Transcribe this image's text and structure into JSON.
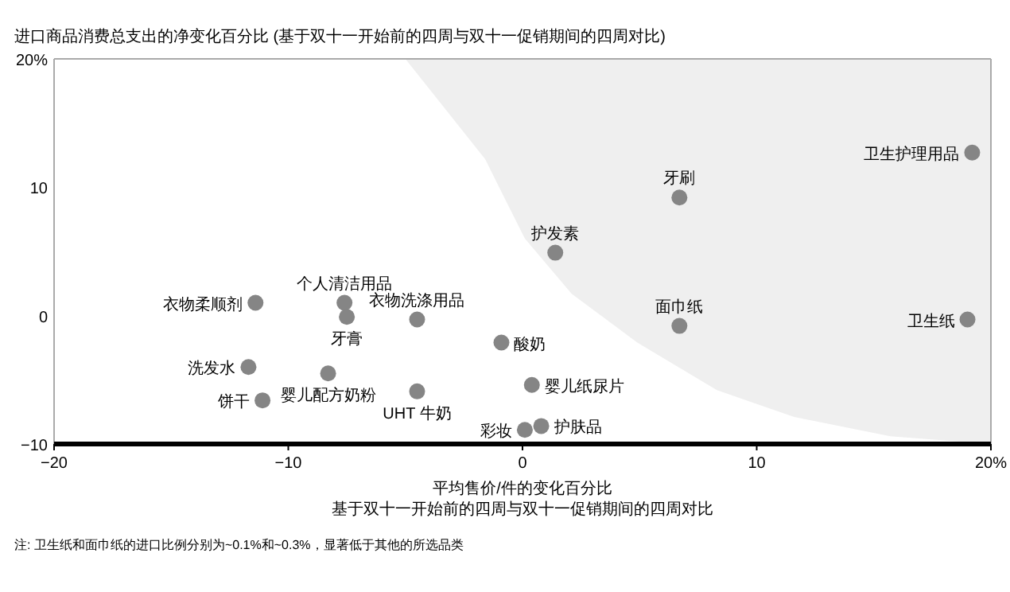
{
  "chart_data": {
    "type": "scatter",
    "ylabel": "进口商品消费总支出的净变化百分比 (基于双十一开始前的四周与双十一促销期间的四周对比)",
    "xlabel": "平均售价/件的变化百分比",
    "xlim": [
      -20,
      20
    ],
    "ylim": [
      -10,
      20
    ],
    "xticks": [
      {
        "value": -20,
        "label": "−20"
      },
      {
        "value": -10,
        "label": "−10"
      },
      0,
      10,
      {
        "value": 20,
        "label": "20%"
      }
    ],
    "yticks": [
      {
        "value": -10,
        "label": "−10"
      },
      0,
      10,
      {
        "value": 20,
        "label": "20%"
      }
    ],
    "marker": "circle",
    "series": [
      {
        "type": "area",
        "color": "#efefef",
        "x": [
          -5.0,
          -1.6,
          0.1,
          2.1,
          4.9,
          8.3,
          11.6,
          15.7,
          20,
          20
        ],
        "values": [
          20,
          12.2,
          6.0,
          1.7,
          -2.1,
          -5.8,
          -7.9,
          -9.4,
          -10,
          20
        ],
        "marker": "none"
      },
      {
        "name": "卫生护理用品",
        "color": "#858585",
        "x": [
          19.2
        ],
        "values": [
          12.7
        ]
      },
      {
        "name": "牙刷",
        "color": "#858585",
        "x": [
          6.7
        ],
        "values": [
          9.2
        ]
      },
      {
        "name": "护发素",
        "color": "#858585",
        "x": [
          1.4
        ],
        "values": [
          4.9
        ]
      },
      {
        "name": "面巾纸",
        "color": "#858585",
        "x": [
          6.7
        ],
        "values": [
          -0.8
        ]
      },
      {
        "name": "卫生纸",
        "color": "#858585",
        "x": [
          19.0
        ],
        "values": [
          -0.3
        ]
      },
      {
        "name": "酸奶",
        "color": "#858585",
        "x": [
          -0.9
        ],
        "values": [
          -2.1
        ]
      },
      {
        "name": "婴儿纸尿片",
        "color": "#858585",
        "x": [
          0.4
        ],
        "values": [
          -5.4
        ]
      },
      {
        "name": "护肤品",
        "color": "#858585",
        "x": [
          0.8
        ],
        "values": [
          -8.6
        ]
      },
      {
        "name": "彩妆",
        "color": "#858585",
        "x": [
          0.1
        ],
        "values": [
          -8.9
        ]
      },
      {
        "name": "UHT 牛奶",
        "color": "#858585",
        "x": [
          -4.5
        ],
        "values": [
          -5.9
        ]
      },
      {
        "name": "婴儿配方奶粉",
        "color": "#858585",
        "x": [
          -8.3
        ],
        "values": [
          -4.5
        ]
      },
      {
        "name": "饼干",
        "color": "#858585",
        "x": [
          -11.1
        ],
        "values": [
          -6.6
        ]
      },
      {
        "name": "洗发水",
        "color": "#858585",
        "x": [
          -11.7
        ],
        "values": [
          -4.0
        ]
      },
      {
        "name": "衣物柔顺剂",
        "color": "#858585",
        "x": [
          -11.4
        ],
        "values": [
          1.0
        ]
      },
      {
        "name": "个人清洁用品",
        "color": "#858585",
        "x": [
          -7.6
        ],
        "values": [
          1.0
        ]
      },
      {
        "name": "牙膏",
        "color": "#858585",
        "x": [
          -7.5
        ],
        "values": [
          -0.1
        ]
      },
      {
        "name": "衣物洗涤用品",
        "color": "#858585",
        "x": [
          -4.5
        ],
        "values": [
          -0.3
        ]
      }
    ],
    "annotations": [
      "基于双十一开始前的四周与双十一促销期间的四周对比",
      "注: 卫生纸和面巾纸的进口比例分别为~0.1%和~0.3%，显著低于其他的所选品类"
    ]
  }
}
